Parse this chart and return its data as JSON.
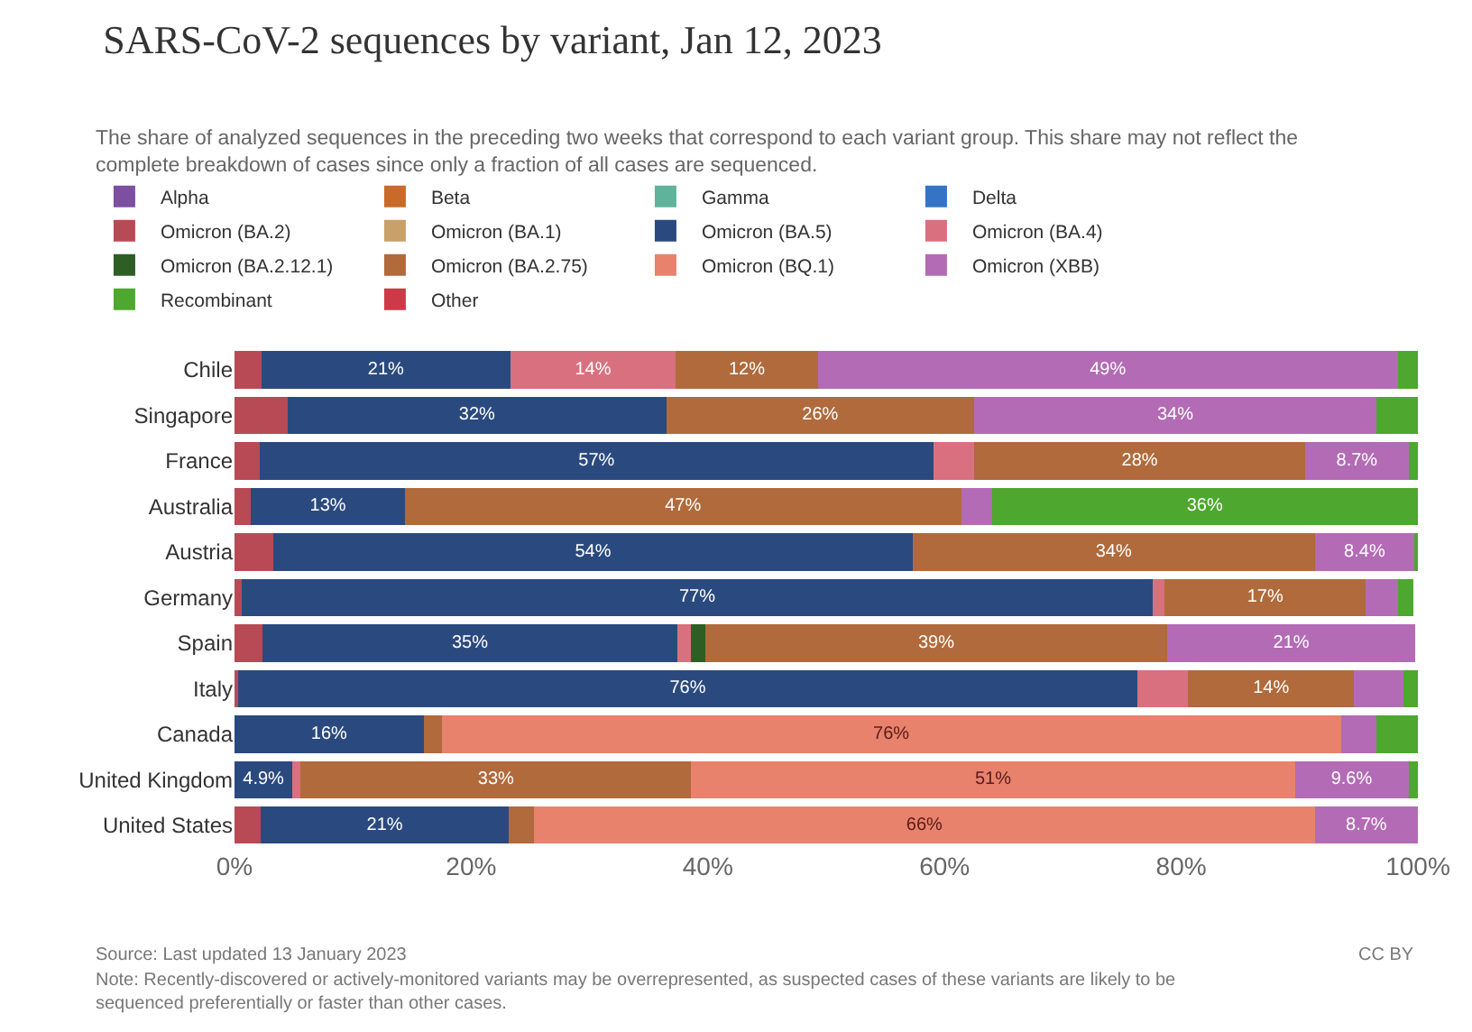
{
  "chart_data": {
    "type": "bar",
    "orientation": "horizontal",
    "stacked": true,
    "title": "SARS-CoV-2 sequences by variant, Jan 12, 2023",
    "subtitle": "The share of analyzed sequences in the preceding two weeks that correspond to each variant group. This share may not reflect the complete breakdown of cases since only a fraction of all cases are sequenced.",
    "annotations": [
      "Source: Last updated 13 January 2023",
      "CC BY",
      "Note: Recently-discovered or actively-monitored variants may be overrepresented, as suspected cases of these variants are likely to be sequenced preferentially or faster than other cases."
    ],
    "categories": [
      "Chile",
      "Singapore",
      "France",
      "Australia",
      "Austria",
      "Germany",
      "Spain",
      "Italy",
      "Canada",
      "United Kingdom",
      "United States"
    ],
    "xlim": [
      0,
      100
    ],
    "xticks": [
      {
        "value": 0,
        "label": "0%"
      },
      {
        "value": 20,
        "label": "20%"
      },
      {
        "value": 40,
        "label": "40%"
      },
      {
        "value": 60,
        "label": "60%"
      },
      {
        "value": 80,
        "label": "80%"
      },
      {
        "value": 100,
        "label": "100%"
      }
    ],
    "legend": "top",
    "grid": false,
    "series": [
      {
        "name": "Alpha",
        "color": "#7d4fa0",
        "values": [
          null,
          null,
          null,
          null,
          null,
          null,
          null,
          null,
          null,
          null,
          null
        ]
      },
      {
        "name": "Beta",
        "color": "#c86a2a",
        "values": [
          null,
          null,
          null,
          null,
          null,
          null,
          null,
          null,
          null,
          null,
          null
        ]
      },
      {
        "name": "Gamma",
        "color": "#5fb39a",
        "values": [
          null,
          null,
          null,
          null,
          null,
          null,
          null,
          null,
          null,
          null,
          null
        ]
      },
      {
        "name": "Delta",
        "color": "#3474c4",
        "values": [
          null,
          null,
          null,
          null,
          null,
          null,
          null,
          null,
          null,
          null,
          null
        ]
      },
      {
        "name": "Omicron (BA.2)",
        "color": "#b84a55",
        "values": [
          2.3,
          4.5,
          2.1,
          1.4,
          3.3,
          0.6,
          2.4,
          0.3,
          null,
          null,
          2.2
        ],
        "value_labels": [
          null,
          null,
          null,
          null,
          null,
          null,
          null,
          null,
          null,
          null,
          null
        ]
      },
      {
        "name": "Omicron (BA.1)",
        "color": "#c9a06a",
        "values": [
          null,
          null,
          null,
          null,
          null,
          null,
          null,
          null,
          null,
          null,
          null
        ]
      },
      {
        "name": "Omicron (BA.5)",
        "color": "#2a4a7f",
        "values": [
          21,
          32,
          57,
          13,
          54,
          77,
          35,
          76,
          16,
          4.9,
          21
        ],
        "value_labels": [
          "21%",
          "32%",
          "57%",
          "13%",
          "54%",
          "77%",
          "35%",
          "76%",
          "16%",
          "4.9%",
          "21%"
        ]
      },
      {
        "name": "Omicron (BA.4)",
        "color": "#d9707f",
        "values": [
          14,
          null,
          3.4,
          null,
          null,
          1,
          1.2,
          4.3,
          null,
          0.7,
          null
        ],
        "value_labels": [
          "14%",
          null,
          null,
          null,
          null,
          null,
          null,
          null,
          null,
          null,
          null
        ]
      },
      {
        "name": "Omicron (BA.2.12.1)",
        "color": "#2e5e24",
        "values": [
          null,
          null,
          null,
          null,
          null,
          null,
          1.2,
          null,
          null,
          null,
          null
        ]
      },
      {
        "name": "Omicron (BA.2.75)",
        "color": "#b06a3b",
        "values": [
          12,
          26,
          28,
          47,
          34,
          17,
          39,
          14,
          1.5,
          33,
          2.1
        ],
        "value_labels": [
          "12%",
          "26%",
          "28%",
          "47%",
          "34%",
          "17%",
          "39%",
          "14%",
          null,
          "33%",
          null
        ]
      },
      {
        "name": "Omicron (BQ.1)",
        "color": "#e8826c",
        "values": [
          null,
          null,
          null,
          null,
          null,
          null,
          null,
          null,
          76,
          51,
          66
        ],
        "value_labels": [
          null,
          null,
          null,
          null,
          null,
          null,
          null,
          null,
          "76%",
          "51%",
          "66%"
        ]
      },
      {
        "name": "Omicron (XBB)",
        "color": "#b36bb5",
        "values": [
          49,
          34,
          8.7,
          2.6,
          8.4,
          2.7,
          21,
          4.2,
          3,
          9.6,
          8.7
        ],
        "value_labels": [
          "49%",
          "34%",
          "8.7%",
          null,
          "8.4%",
          null,
          "21%",
          null,
          null,
          "9.6%",
          "8.7%"
        ]
      },
      {
        "name": "Recombinant",
        "color": "#4ea72e",
        "values": [
          1.7,
          3.5,
          0.8,
          36,
          0.3,
          1.3,
          null,
          1.2,
          3.5,
          0.8,
          null
        ],
        "value_labels": [
          null,
          null,
          null,
          "36%",
          null,
          null,
          null,
          null,
          null,
          null,
          null
        ]
      },
      {
        "name": "Other",
        "color": "#cc3a48",
        "values": [
          null,
          null,
          null,
          null,
          null,
          null,
          null,
          null,
          null,
          null,
          null
        ]
      }
    ]
  }
}
